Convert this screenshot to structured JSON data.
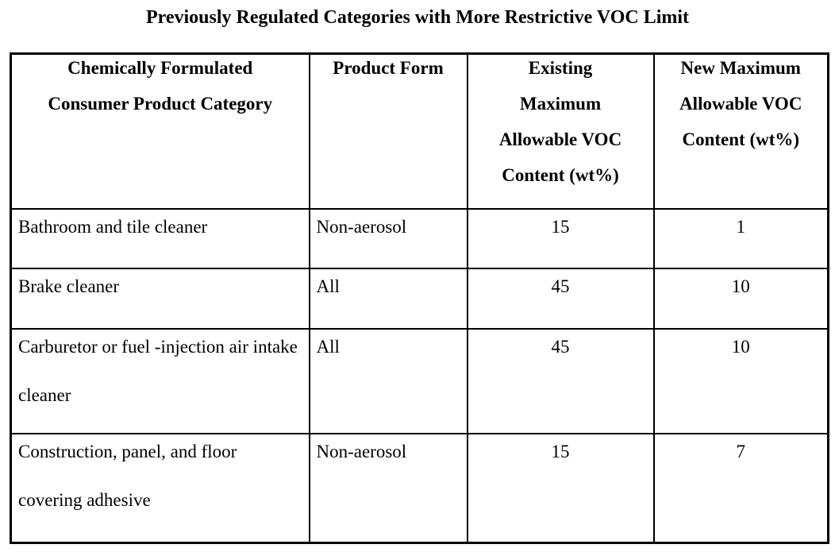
{
  "page": {
    "background_color": "#ffffff",
    "text_color": "#000000",
    "border_color": "#000000"
  },
  "title": "Previously Regulated Categories with More Restrictive VOC Limit",
  "table": {
    "columns": [
      {
        "id": "category",
        "header": "Chemically Formulated Consumer Product Category",
        "header_lines": [
          "Chemically Formulated",
          "Consumer Product Category"
        ]
      },
      {
        "id": "product_form",
        "header": "Product Form",
        "header_lines": [
          "Product Form"
        ]
      },
      {
        "id": "existing_max",
        "header": "Existing Maximum Allowable VOC Content (wt%)",
        "header_lines": [
          "Existing",
          "Maximum",
          "Allowable VOC",
          "Content (wt%)"
        ]
      },
      {
        "id": "new_max",
        "header": "New Maximum Allowable VOC Content (wt%)",
        "header_lines": [
          "New Maximum",
          "Allowable VOC",
          "Content (wt%)"
        ]
      }
    ],
    "rows": [
      {
        "category": "Bathroom and tile cleaner",
        "product_form": "Non-aerosol",
        "existing_max": "15",
        "new_max": "1"
      },
      {
        "category": "Brake cleaner",
        "product_form": "All",
        "existing_max": "45",
        "new_max": "10"
      },
      {
        "category": "Carburetor or fuel -injection air intake cleaner",
        "product_form": "All",
        "existing_max": "45",
        "new_max": "10"
      },
      {
        "category": "Construction, panel, and floor covering adhesive",
        "product_form": "Non-aerosol",
        "existing_max": "15",
        "new_max": "7"
      }
    ]
  }
}
